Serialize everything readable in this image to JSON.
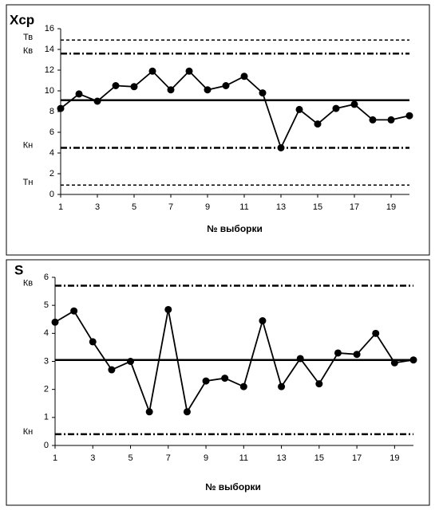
{
  "chart_data": [
    {
      "type": "line",
      "title": "Xср",
      "x_label": "№ выборки",
      "x": [
        1,
        2,
        3,
        4,
        5,
        6,
        7,
        8,
        9,
        10,
        11,
        12,
        13,
        14,
        15,
        16,
        17,
        18,
        19,
        20
      ],
      "xlim": [
        1,
        20
      ],
      "xticks": [
        1,
        3,
        5,
        7,
        9,
        11,
        13,
        15,
        17,
        19
      ],
      "ylim": [
        0,
        16
      ],
      "yticks": [
        0,
        2,
        4,
        6,
        8,
        10,
        12,
        14,
        16
      ],
      "series": [
        {
          "color": "#000000",
          "values": [
            8.3,
            9.7,
            9.0,
            10.5,
            10.4,
            11.9,
            10.1,
            11.9,
            10.1,
            10.5,
            11.4,
            9.8,
            4.5,
            8.2,
            6.8,
            8.3,
            8.7,
            7.2,
            7.2,
            7.6
          ]
        }
      ],
      "lines": [
        {
          "label": "Тв",
          "value": 14.9,
          "style": "dashed"
        },
        {
          "label": "Кв",
          "value": 13.6,
          "style": "dashdot"
        },
        {
          "value": 9.1,
          "style": "solid"
        },
        {
          "label": "Кн",
          "value": 4.5,
          "style": "dashdot"
        },
        {
          "label": "Тн",
          "value": 0.9,
          "style": "dashed"
        }
      ]
    },
    {
      "type": "line",
      "title": "S",
      "x_label": "№ выборки",
      "x": [
        1,
        2,
        3,
        4,
        5,
        6,
        7,
        8,
        9,
        10,
        11,
        12,
        13,
        14,
        15,
        16,
        17,
        18,
        19,
        20
      ],
      "xlim": [
        1,
        20
      ],
      "xticks": [
        1,
        3,
        5,
        7,
        9,
        11,
        13,
        15,
        17,
        19
      ],
      "ylim": [
        0,
        6
      ],
      "yticks": [
        0,
        1,
        2,
        3,
        4,
        5,
        6
      ],
      "series": [
        {
          "color": "#000000",
          "values": [
            4.4,
            4.8,
            3.7,
            2.7,
            3.0,
            1.2,
            4.85,
            1.2,
            2.3,
            2.4,
            2.1,
            4.45,
            2.1,
            3.1,
            2.2,
            3.3,
            3.25,
            4.0,
            2.95,
            3.05
          ]
        }
      ],
      "lines": [
        {
          "label": "Кв",
          "value": 5.7,
          "style": "dashdot"
        },
        {
          "value": 3.05,
          "style": "solid"
        },
        {
          "label": "Кн",
          "value": 0.4,
          "style": "dashdot"
        }
      ]
    }
  ]
}
